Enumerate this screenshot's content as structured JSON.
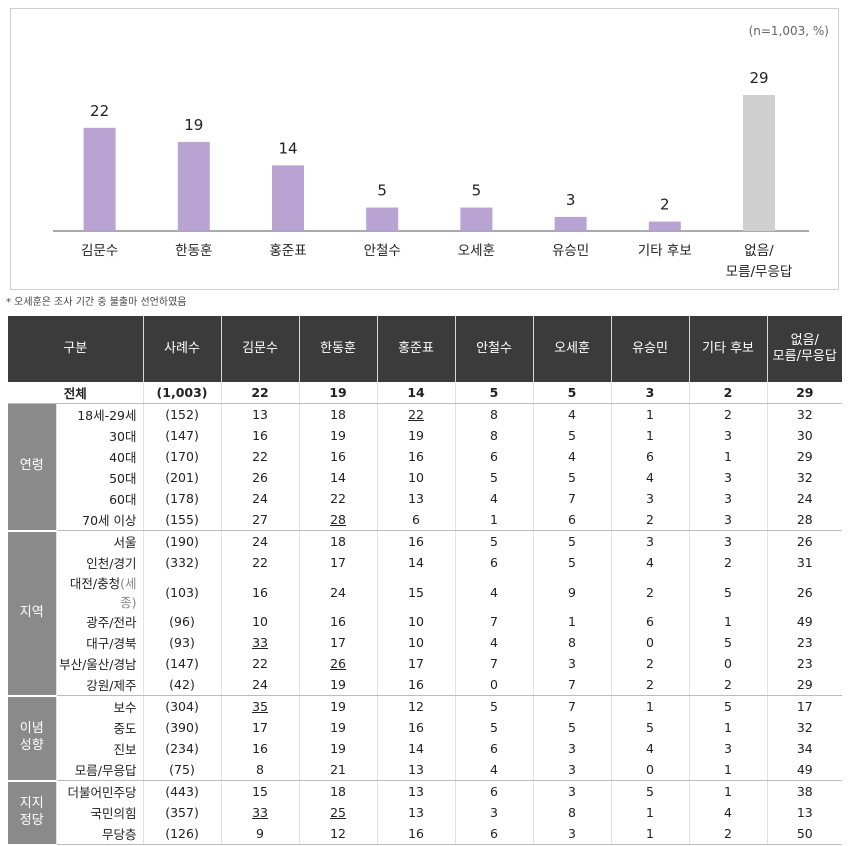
{
  "note": "(n=1,003, %)",
  "footnote": "* 오세훈은 조사 기간 중 불출마 선언하였음",
  "chart_data": {
    "type": "bar",
    "categories": [
      "김문수",
      "한동훈",
      "홍준표",
      "안철수",
      "오세훈",
      "유승민",
      "기타 후보",
      "없음/모름/무응답"
    ],
    "category_lines": [
      [
        "김문수"
      ],
      [
        "한동훈"
      ],
      [
        "홍준표"
      ],
      [
        "안철수"
      ],
      [
        "오세훈"
      ],
      [
        "유승민"
      ],
      [
        "기타 후보"
      ],
      [
        "없음/",
        "모름/무응답"
      ]
    ],
    "values": [
      22,
      19,
      14,
      5,
      5,
      3,
      2,
      29
    ],
    "ylim": [
      0,
      29
    ],
    "colors": [
      "#b9a3d3",
      "#b9a3d3",
      "#b9a3d3",
      "#b9a3d3",
      "#b9a3d3",
      "#b9a3d3",
      "#b9a3d3",
      "#cfcfcf"
    ],
    "title": "",
    "xlabel": "",
    "ylabel": ""
  },
  "table": {
    "headers": [
      "구분",
      "사례수",
      "김문수",
      "한동훈",
      "홍준표",
      "안철수",
      "오세훈",
      "유승민",
      "기타 후보",
      "없음/모름/무응답"
    ],
    "last_header_lines": [
      "없음/",
      "모름/무응답"
    ],
    "total": {
      "label": "전체",
      "n": "(1,003)",
      "values": [
        "22",
        "19",
        "14",
        "5",
        "5",
        "3",
        "2",
        "29"
      ]
    },
    "groups": [
      {
        "name": "연령",
        "name_lines": [
          "연령"
        ],
        "rows": [
          {
            "label": "18세-29세",
            "n": "(152)",
            "values": [
              "13",
              "18",
              "22",
              "8",
              "4",
              "1",
              "2",
              "32"
            ],
            "underline": [
              2
            ]
          },
          {
            "label": "30대",
            "n": "(147)",
            "values": [
              "16",
              "19",
              "19",
              "8",
              "5",
              "1",
              "3",
              "30"
            ]
          },
          {
            "label": "40대",
            "n": "(170)",
            "values": [
              "22",
              "16",
              "16",
              "6",
              "4",
              "6",
              "1",
              "29"
            ]
          },
          {
            "label": "50대",
            "n": "(201)",
            "values": [
              "26",
              "14",
              "10",
              "5",
              "5",
              "4",
              "3",
              "32"
            ]
          },
          {
            "label": "60대",
            "n": "(178)",
            "values": [
              "24",
              "22",
              "13",
              "4",
              "7",
              "3",
              "3",
              "24"
            ]
          },
          {
            "label": "70세 이상",
            "n": "(155)",
            "values": [
              "27",
              "28",
              "6",
              "1",
              "6",
              "2",
              "3",
              "28"
            ],
            "underline": [
              1
            ]
          }
        ]
      },
      {
        "name": "지역",
        "name_lines": [
          "지역"
        ],
        "rows": [
          {
            "label": "서울",
            "n": "(190)",
            "values": [
              "24",
              "18",
              "16",
              "5",
              "5",
              "3",
              "3",
              "26"
            ]
          },
          {
            "label": "인천/경기",
            "n": "(332)",
            "values": [
              "22",
              "17",
              "14",
              "6",
              "5",
              "4",
              "2",
              "31"
            ]
          },
          {
            "label": "대전/충청",
            "label_sub": "(세종)",
            "n": "(103)",
            "values": [
              "16",
              "24",
              "15",
              "4",
              "9",
              "2",
              "5",
              "26"
            ]
          },
          {
            "label": "광주/전라",
            "n": "(96)",
            "values": [
              "10",
              "16",
              "10",
              "7",
              "1",
              "6",
              "1",
              "49"
            ]
          },
          {
            "label": "대구/경북",
            "n": "(93)",
            "values": [
              "33",
              "17",
              "10",
              "4",
              "8",
              "0",
              "5",
              "23"
            ],
            "underline": [
              0
            ]
          },
          {
            "label": "부산/울산/경남",
            "n": "(147)",
            "values": [
              "22",
              "26",
              "17",
              "7",
              "3",
              "2",
              "0",
              "23"
            ],
            "underline": [
              1
            ]
          },
          {
            "label": "강원/제주",
            "n": "(42)",
            "values": [
              "24",
              "19",
              "16",
              "0",
              "7",
              "2",
              "2",
              "29"
            ]
          }
        ]
      },
      {
        "name": "이념 성향",
        "name_lines": [
          "이념",
          "성향"
        ],
        "rows": [
          {
            "label": "보수",
            "n": "(304)",
            "values": [
              "35",
              "19",
              "12",
              "5",
              "7",
              "1",
              "5",
              "17"
            ],
            "underline": [
              0
            ]
          },
          {
            "label": "중도",
            "n": "(390)",
            "values": [
              "17",
              "19",
              "16",
              "5",
              "5",
              "5",
              "1",
              "32"
            ]
          },
          {
            "label": "진보",
            "n": "(234)",
            "values": [
              "16",
              "19",
              "14",
              "6",
              "3",
              "4",
              "3",
              "34"
            ]
          },
          {
            "label": "모름/무응답",
            "n": "(75)",
            "values": [
              "8",
              "21",
              "13",
              "4",
              "3",
              "0",
              "1",
              "49"
            ]
          }
        ]
      },
      {
        "name": "지지 정당",
        "name_lines": [
          "지지",
          "정당"
        ],
        "rows": [
          {
            "label": "더불어민주당",
            "n": "(443)",
            "values": [
              "15",
              "18",
              "13",
              "6",
              "3",
              "5",
              "1",
              "38"
            ]
          },
          {
            "label": "국민의힘",
            "n": "(357)",
            "values": [
              "33",
              "25",
              "13",
              "3",
              "8",
              "1",
              "4",
              "13"
            ],
            "underline": [
              0,
              1
            ]
          },
          {
            "label": "무당층",
            "n": "(126)",
            "values": [
              "9",
              "12",
              "16",
              "6",
              "3",
              "1",
              "2",
              "50"
            ]
          }
        ]
      }
    ]
  }
}
